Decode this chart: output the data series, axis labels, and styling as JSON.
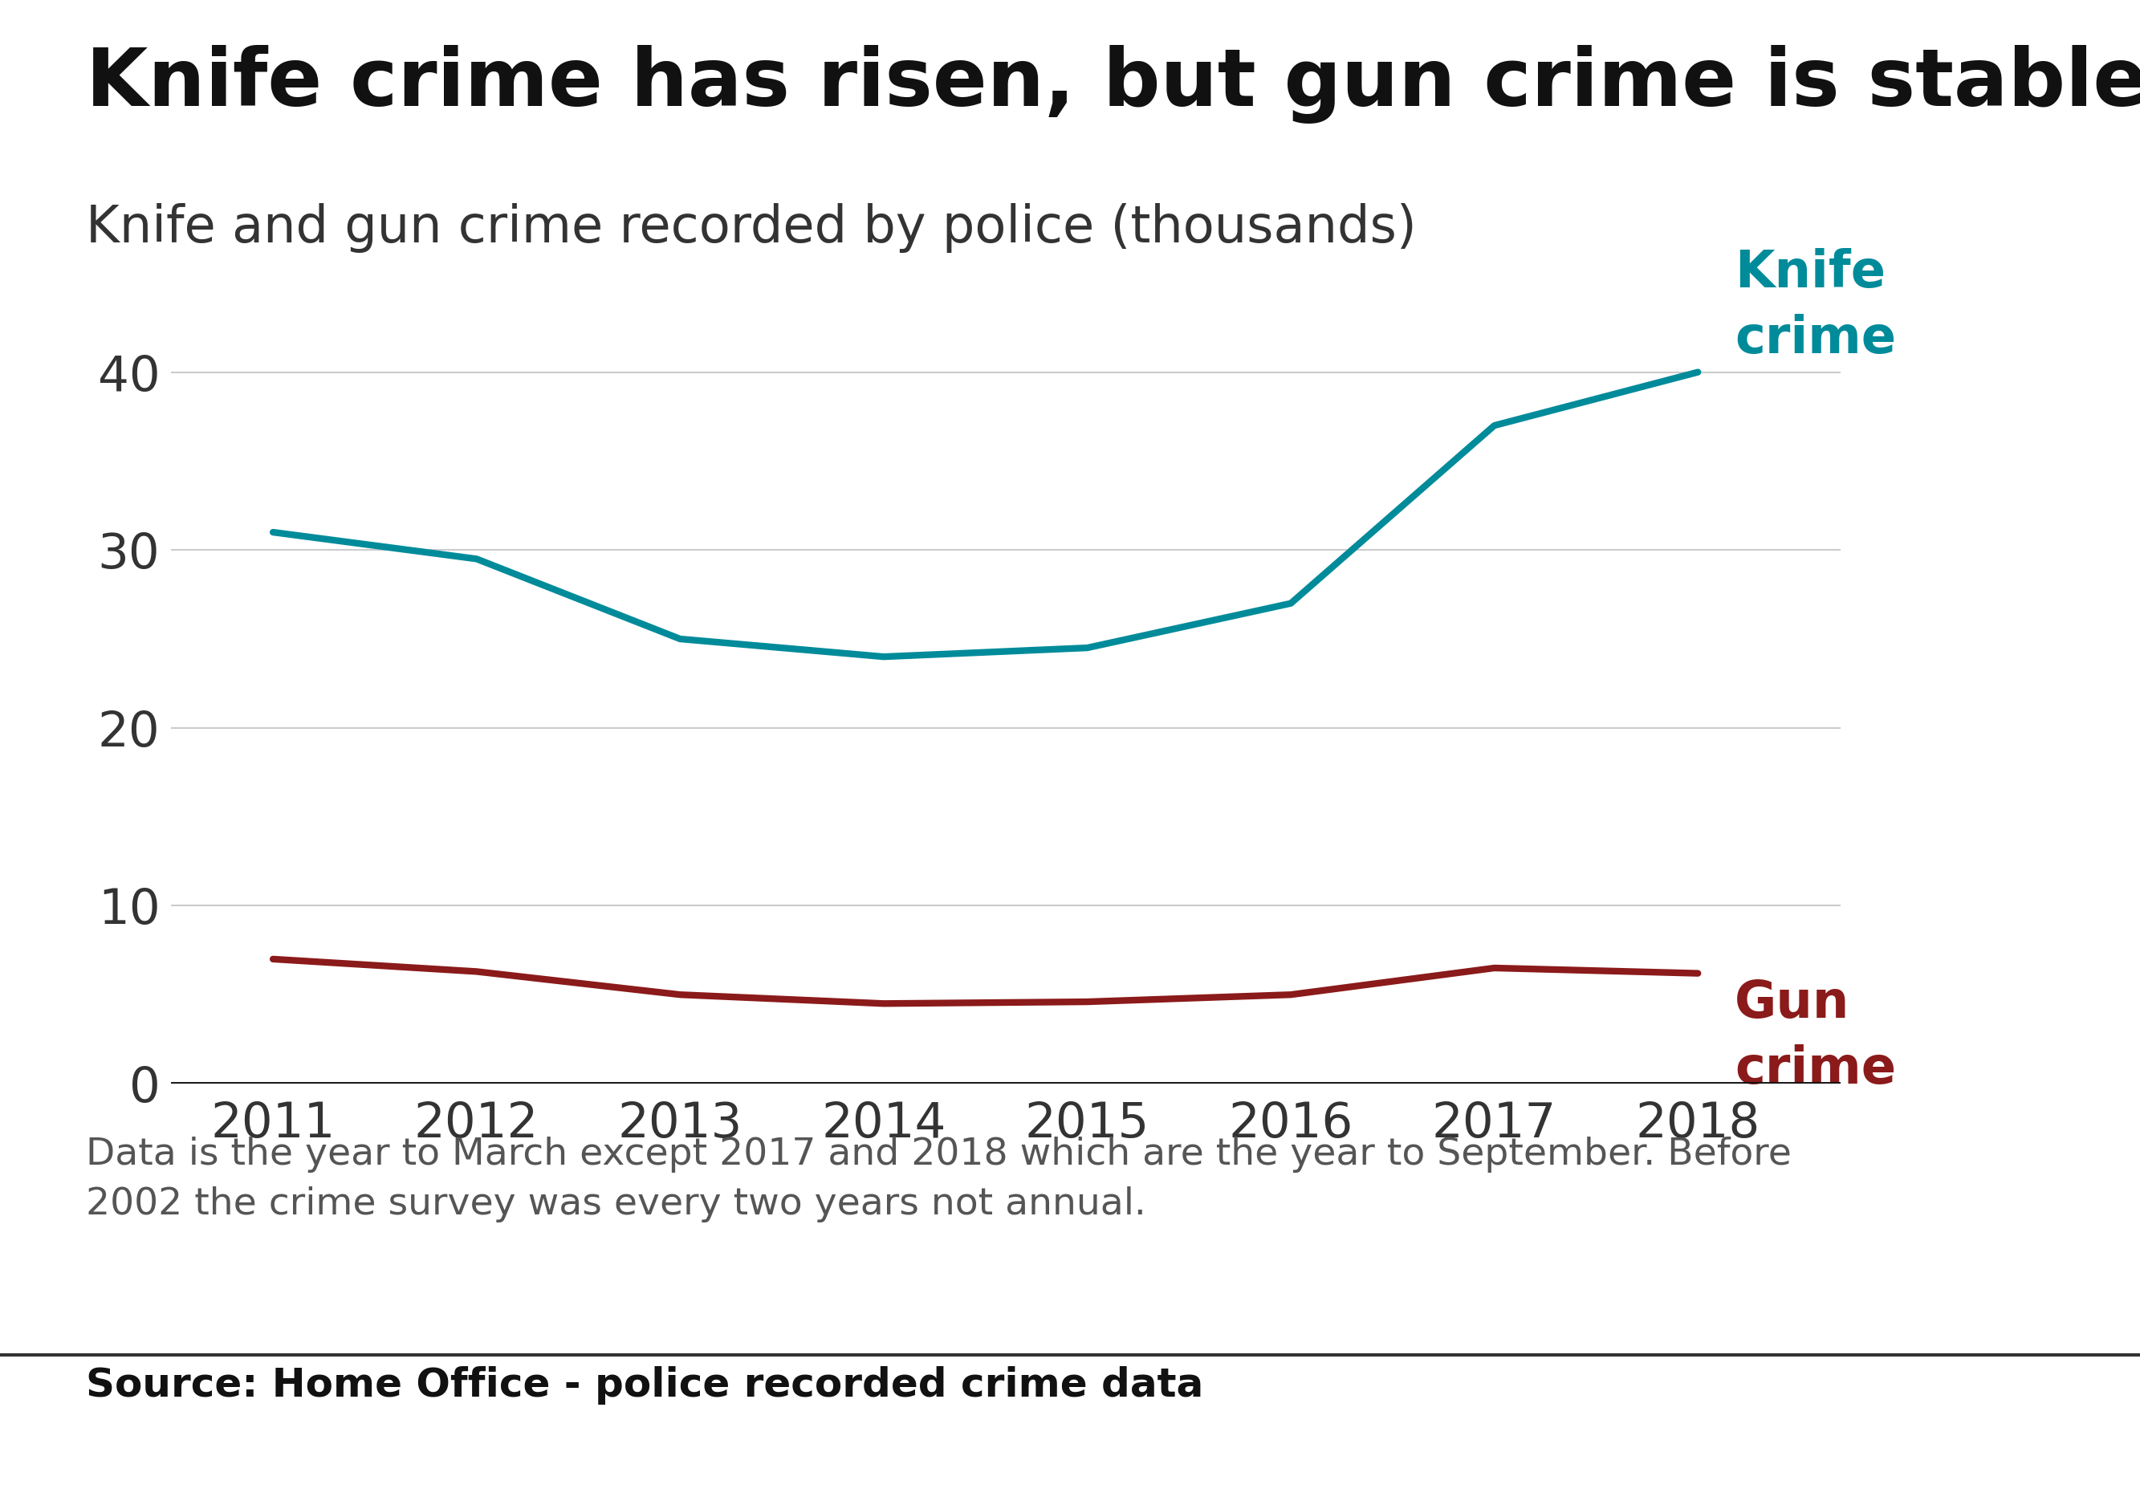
{
  "title": "Knife crime has risen, but gun crime is stable",
  "subtitle": "Knife and gun crime recorded by police (thousands)",
  "years": [
    2011,
    2012,
    2013,
    2014,
    2015,
    2016,
    2017,
    2018
  ],
  "knife_crime": [
    31.0,
    29.5,
    25.0,
    24.0,
    24.5,
    27.0,
    37.0,
    40.0
  ],
  "gun_crime": [
    7.0,
    6.3,
    5.0,
    4.5,
    4.6,
    5.0,
    6.5,
    6.2
  ],
  "knife_color": "#008B9A",
  "gun_color": "#8B1A1A",
  "knife_label": "Knife\ncrime",
  "gun_label": "Gun\ncrime",
  "ylim": [
    0,
    44
  ],
  "yticks": [
    0,
    10,
    20,
    30,
    40
  ],
  "grid_color": "#cccccc",
  "background_color": "#ffffff",
  "title_fontsize": 72,
  "subtitle_fontsize": 46,
  "tick_fontsize": 44,
  "label_fontsize": 46,
  "footnote": "Data is the year to March except 2017 and 2018 which are the year to September. Before\n2002 the crime survey was every two years not annual.",
  "source": "Source: Home Office - police recorded crime data",
  "footnote_fontsize": 34,
  "source_fontsize": 36,
  "line_width": 6,
  "zero_line_color": "#111111",
  "bbc_bg": "#555555"
}
